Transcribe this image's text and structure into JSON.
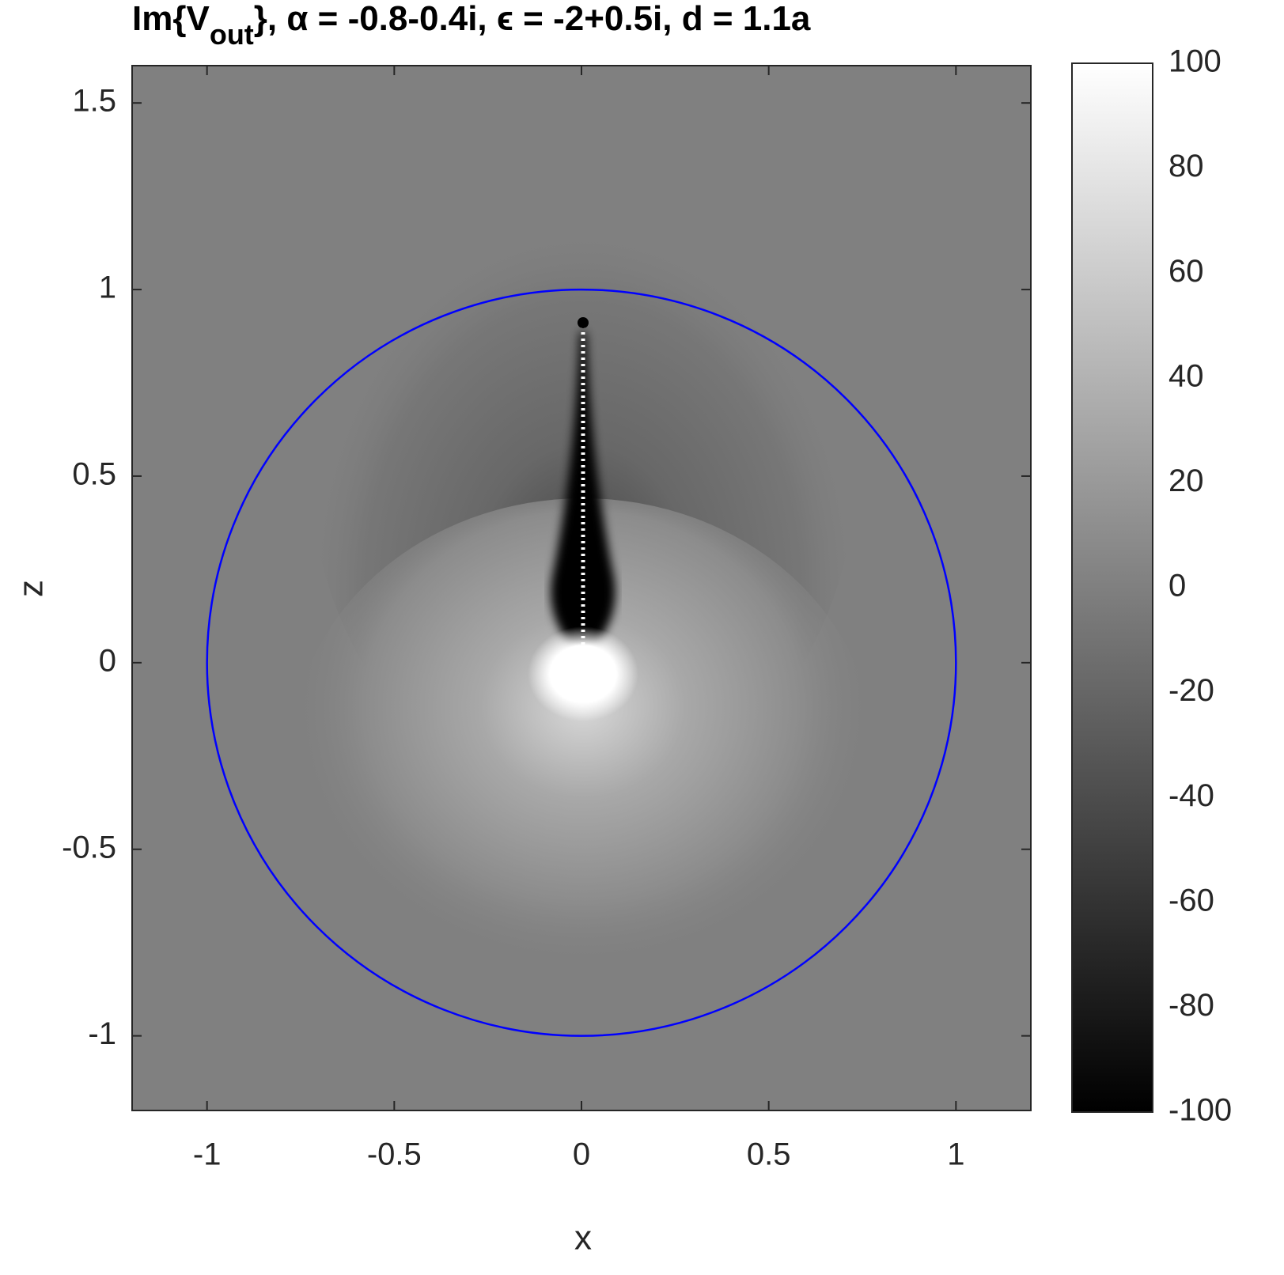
{
  "chart_data": {
    "type": "heatmap",
    "title": {
      "prefix": "Im{V",
      "subscript": "out",
      "suffix": "}, α = -0.8-0.4i,  ϵ = -2+0.5i,  d = 1.1a"
    },
    "x_label": "x",
    "y_label": "z",
    "xlim": [
      -1.2,
      1.2
    ],
    "ylim": [
      -1.2,
      1.6
    ],
    "xticks": [
      -1,
      -0.5,
      0,
      0.5,
      1
    ],
    "yticks": [
      -1,
      -0.5,
      0,
      0.5,
      1,
      1.5
    ],
    "colormap": [
      "#000000",
      "#ffffff"
    ],
    "clim": [
      -100,
      100
    ],
    "cticks": [
      -100,
      -80,
      -60,
      -40,
      -20,
      0,
      20,
      40,
      60,
      80,
      100
    ],
    "circle": {
      "center": [
        0,
        0
      ],
      "radius": 1,
      "color": "#0000ff"
    }
  }
}
